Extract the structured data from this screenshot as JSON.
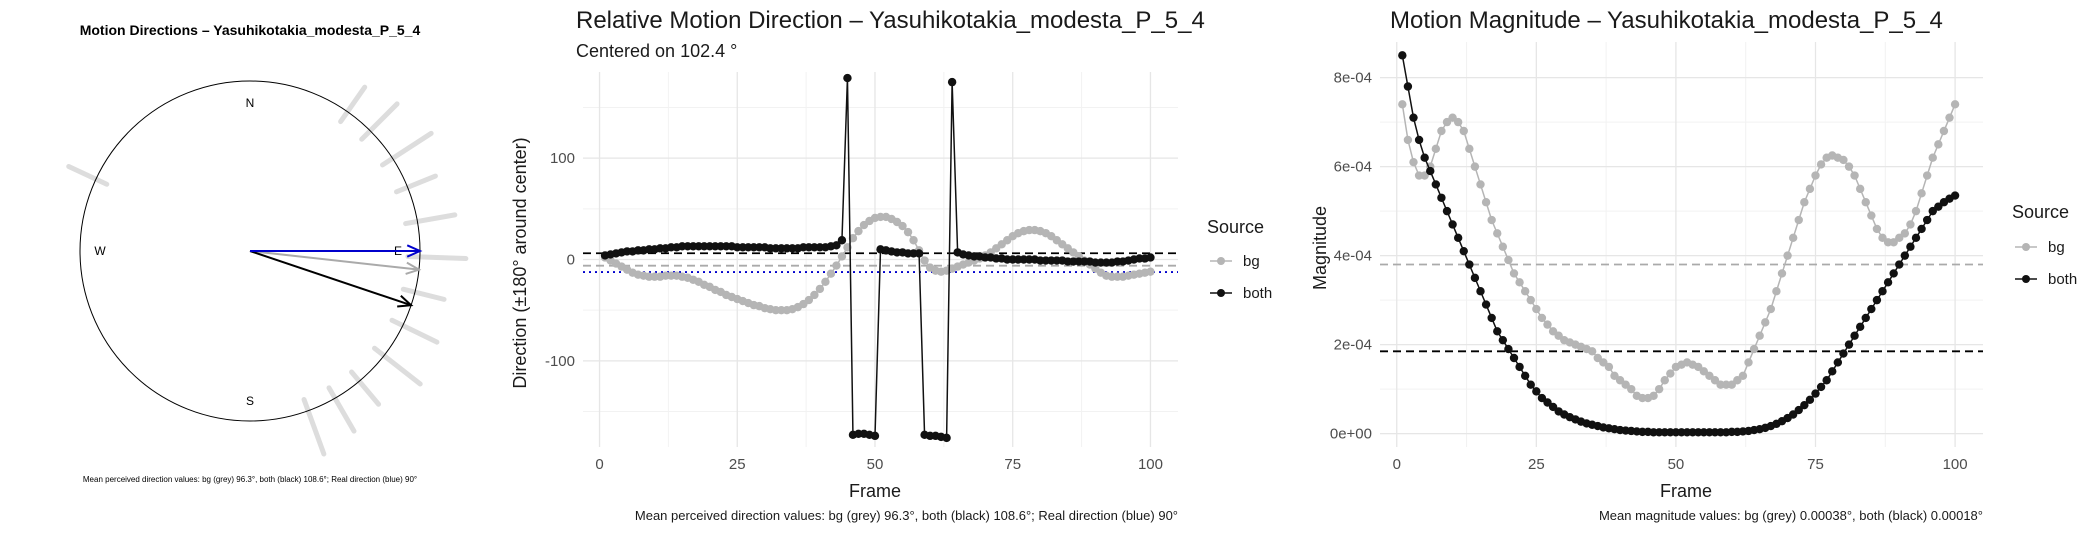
{
  "chart_data": [
    {
      "type": "polar-arrows",
      "title": "Motion Directions – Yasuhikotakia_modesta_P_5_4",
      "compass": [
        "N",
        "E",
        "S",
        "W"
      ],
      "caption": "Mean perceived direction values: bg (grey) 96.3°, both (black) 108.6°; Real direction (blue) 90°",
      "arrows": [
        {
          "name": "bg",
          "angle_deg": 96.3,
          "color": "#aaaaaa"
        },
        {
          "name": "both",
          "angle_deg": 108.6,
          "color": "#000000"
        },
        {
          "name": "real",
          "angle_deg": 90,
          "color": "#0000cc"
        }
      ],
      "spokes_deg": [
        35,
        45,
        57,
        68,
        80,
        92,
        104,
        116,
        128,
        140,
        150,
        160,
        295
      ]
    },
    {
      "type": "line",
      "title": "Relative Motion Direction – Yasuhikotakia_modesta_P_5_4",
      "subtitle": "Centered on  102.4 °",
      "xlabel": "Frame",
      "ylabel": "Direction (±180° around center)",
      "xlim": [
        -3,
        105
      ],
      "ylim": [
        -185,
        185
      ],
      "xticks": [
        0,
        25,
        50,
        75,
        100
      ],
      "yticks": [
        -100,
        0,
        100
      ],
      "legend_title": "Source",
      "caption": "Mean perceived direction values: bg (grey) 96.3°, both (black) 108.6°; Real direction (blue) 90°",
      "hlines": [
        {
          "y": 6.2,
          "color": "#000000",
          "dash": "dashed"
        },
        {
          "y": -6.1,
          "color": "#aaaaaa",
          "dash": "dashed"
        },
        {
          "y": -12.4,
          "color": "#0000cc",
          "dash": "dotted"
        }
      ],
      "series": [
        {
          "name": "bg",
          "color": "#b5b5b5",
          "x": [
            1,
            2,
            3,
            4,
            5,
            6,
            7,
            8,
            9,
            10,
            11,
            12,
            13,
            14,
            15,
            16,
            17,
            18,
            19,
            20,
            21,
            22,
            23,
            24,
            25,
            26,
            27,
            28,
            29,
            30,
            31,
            32,
            33,
            34,
            35,
            36,
            37,
            38,
            39,
            40,
            41,
            42,
            43,
            44,
            45,
            46,
            47,
            48,
            49,
            50,
            51,
            52,
            53,
            54,
            55,
            56,
            57,
            58,
            59,
            60,
            61,
            62,
            63,
            64,
            65,
            66,
            67,
            68,
            69,
            70,
            71,
            72,
            73,
            74,
            75,
            76,
            77,
            78,
            79,
            80,
            81,
            82,
            83,
            84,
            85,
            86,
            87,
            88,
            89,
            90,
            91,
            92,
            93,
            94,
            95,
            96,
            97,
            98,
            99,
            100
          ],
          "y": [
            2,
            -1,
            -4,
            -7,
            -10,
            -13,
            -15,
            -16,
            -17,
            -17,
            -17,
            -16,
            -16,
            -16,
            -17,
            -18,
            -20,
            -22,
            -25,
            -27,
            -30,
            -32,
            -35,
            -37,
            -39,
            -41,
            -43,
            -45,
            -46,
            -48,
            -49,
            -50,
            -50,
            -50,
            -49,
            -47,
            -44,
            -40,
            -35,
            -29,
            -22,
            -14,
            -6,
            3,
            12,
            21,
            28,
            34,
            38,
            41,
            42,
            42,
            40,
            37,
            33,
            27,
            19,
            9,
            -1,
            -8,
            -11,
            -12,
            -11,
            -9,
            -7,
            -5,
            -3,
            -1,
            1,
            4,
            7,
            11,
            15,
            19,
            23,
            26,
            28,
            29,
            29,
            28,
            26,
            23,
            19,
            15,
            11,
            7,
            3,
            -1,
            -5,
            -9,
            -13,
            -16,
            -17,
            -17,
            -17,
            -16,
            -15,
            -14,
            -13,
            -12
          ]
        },
        {
          "name": "both",
          "color": "#111111",
          "x": [
            1,
            2,
            3,
            4,
            5,
            6,
            7,
            8,
            9,
            10,
            11,
            12,
            13,
            14,
            15,
            16,
            17,
            18,
            19,
            20,
            21,
            22,
            23,
            24,
            25,
            26,
            27,
            28,
            29,
            30,
            31,
            32,
            33,
            34,
            35,
            36,
            37,
            38,
            39,
            40,
            41,
            42,
            43,
            44,
            45,
            46,
            47,
            48,
            49,
            50,
            51,
            52,
            53,
            54,
            55,
            56,
            57,
            58,
            59,
            60,
            61,
            62,
            63,
            64,
            65,
            66,
            67,
            68,
            69,
            70,
            71,
            72,
            73,
            74,
            75,
            76,
            77,
            78,
            79,
            80,
            81,
            82,
            83,
            84,
            85,
            86,
            87,
            88,
            89,
            90,
            91,
            92,
            93,
            94,
            95,
            96,
            97,
            98,
            99,
            100
          ],
          "y": [
            4,
            5,
            6,
            7,
            8,
            8,
            9,
            9,
            10,
            10,
            11,
            11,
            12,
            12,
            13,
            13,
            13,
            13,
            13,
            13,
            13,
            13,
            13,
            13,
            12,
            12,
            12,
            12,
            12,
            12,
            11,
            11,
            11,
            11,
            11,
            11,
            12,
            12,
            12,
            12,
            12,
            13,
            14,
            19,
            179,
            -173,
            -172,
            -172,
            -173,
            -174,
            10,
            9,
            8,
            7,
            7,
            6,
            6,
            6,
            -173,
            -174,
            -174,
            -175,
            -176,
            175,
            7,
            5,
            4,
            3,
            3,
            2,
            2,
            1,
            1,
            0,
            0,
            0,
            0,
            0,
            0,
            -1,
            -1,
            -1,
            -1,
            -1,
            -2,
            -2,
            -2,
            -2,
            -2,
            -3,
            -3,
            -3,
            -3,
            -2,
            -2,
            -1,
            0,
            1,
            1,
            2
          ]
        }
      ]
    },
    {
      "type": "line",
      "title": "Motion Magnitude – Yasuhikotakia_modesta_P_5_4",
      "xlabel": "Frame",
      "ylabel": "Magnitude",
      "xlim": [
        -3,
        105
      ],
      "ylim": [
        -3e-05,
        0.00088
      ],
      "xticks": [
        0,
        25,
        50,
        75,
        100
      ],
      "yticks": [
        0,
        0.0002,
        0.0004,
        0.0006,
        0.0008
      ],
      "ytick_labels": [
        "0e+00",
        "2e-04",
        "4e-04",
        "6e-04",
        "8e-04"
      ],
      "legend_title": "Source",
      "caption": "Mean magnitude values: bg (grey) 0.00038°, both (black) 0.00018°",
      "hlines": [
        {
          "y": 0.00038,
          "color": "#aaaaaa",
          "dash": "dashed"
        },
        {
          "y": 0.000185,
          "color": "#000000",
          "dash": "dashed"
        }
      ],
      "series": [
        {
          "name": "bg",
          "color": "#b5b5b5",
          "x": [
            1,
            2,
            3,
            4,
            5,
            6,
            7,
            8,
            9,
            10,
            11,
            12,
            13,
            14,
            15,
            16,
            17,
            18,
            19,
            20,
            21,
            22,
            23,
            24,
            25,
            26,
            27,
            28,
            29,
            30,
            31,
            32,
            33,
            34,
            35,
            36,
            37,
            38,
            39,
            40,
            41,
            42,
            43,
            44,
            45,
            46,
            47,
            48,
            49,
            50,
            51,
            52,
            53,
            54,
            55,
            56,
            57,
            58,
            59,
            60,
            61,
            62,
            63,
            64,
            65,
            66,
            67,
            68,
            69,
            70,
            71,
            72,
            73,
            74,
            75,
            76,
            77,
            78,
            79,
            80,
            81,
            82,
            83,
            84,
            85,
            86,
            87,
            88,
            89,
            90,
            91,
            92,
            93,
            94,
            95,
            96,
            97,
            98,
            99,
            100
          ],
          "y": [
            0.00074,
            0.00066,
            0.00061,
            0.00058,
            0.00058,
            0.0006,
            0.00064,
            0.00068,
            0.0007,
            0.00071,
            0.0007,
            0.00068,
            0.00064,
            0.0006,
            0.00056,
            0.00052,
            0.00048,
            0.00045,
            0.00042,
            0.00039,
            0.00036,
            0.00034,
            0.00032,
            0.0003,
            0.00028,
            0.00026,
            0.000245,
            0.00023,
            0.00022,
            0.00021,
            0.000205,
            0.0002,
            0.000195,
            0.00019,
            0.000185,
            0.00017,
            0.00016,
            0.00015,
            0.00013,
            0.00012,
            0.00011,
            0.0001,
            8.5e-05,
            8e-05,
            8e-05,
            8.5e-05,
            0.0001,
            0.00012,
            0.000135,
            0.00015,
            0.000155,
            0.00016,
            0.000155,
            0.00015,
            0.00014,
            0.00013,
            0.00012,
            0.00011,
            0.00011,
            0.00011,
            0.00012,
            0.00013,
            0.00016,
            0.00019,
            0.00022,
            0.00025,
            0.00028,
            0.00032,
            0.00036,
            0.0004,
            0.00044,
            0.00048,
            0.00052,
            0.00055,
            0.00058,
            0.000605,
            0.00062,
            0.000625,
            0.00062,
            0.000615,
            0.0006,
            0.00058,
            0.00055,
            0.00052,
            0.00049,
            0.00046,
            0.00044,
            0.00043,
            0.00043,
            0.00044,
            0.00045,
            0.00047,
            0.0005,
            0.00054,
            0.00058,
            0.00062,
            0.00065,
            0.00068,
            0.00071,
            0.00074
          ]
        },
        {
          "name": "both",
          "color": "#111111",
          "x": [
            1,
            2,
            3,
            4,
            5,
            6,
            7,
            8,
            9,
            10,
            11,
            12,
            13,
            14,
            15,
            16,
            17,
            18,
            19,
            20,
            21,
            22,
            23,
            24,
            25,
            26,
            27,
            28,
            29,
            30,
            31,
            32,
            33,
            34,
            35,
            36,
            37,
            38,
            39,
            40,
            41,
            42,
            43,
            44,
            45,
            46,
            47,
            48,
            49,
            50,
            51,
            52,
            53,
            54,
            55,
            56,
            57,
            58,
            59,
            60,
            61,
            62,
            63,
            64,
            65,
            66,
            67,
            68,
            69,
            70,
            71,
            72,
            73,
            74,
            75,
            76,
            77,
            78,
            79,
            80,
            81,
            82,
            83,
            84,
            85,
            86,
            87,
            88,
            89,
            90,
            91,
            92,
            93,
            94,
            95,
            96,
            97,
            98,
            99,
            100
          ],
          "y": [
            0.00085,
            0.00078,
            0.00071,
            0.00066,
            0.00062,
            0.00059,
            0.00056,
            0.00053,
            0.0005,
            0.00047,
            0.00044,
            0.00041,
            0.00038,
            0.00035,
            0.00032,
            0.00029,
            0.00026,
            0.00023,
            0.00021,
            0.00019,
            0.00017,
            0.00015,
            0.00013,
            0.00011,
            9.5e-05,
            8e-05,
            7e-05,
            6e-05,
            5e-05,
            4.3e-05,
            3.7e-05,
            3.2e-05,
            2.7e-05,
            2.3e-05,
            2e-05,
            1.7e-05,
            1.4e-05,
            1.2e-05,
            1e-05,
            8e-06,
            7e-06,
            6e-06,
            5e-06,
            4e-06,
            4e-06,
            3e-06,
            3e-06,
            3e-06,
            3e-06,
            3e-06,
            3e-06,
            3e-06,
            3e-06,
            3e-06,
            3e-06,
            3e-06,
            3e-06,
            3e-06,
            3e-06,
            4e-06,
            4e-06,
            5e-06,
            6e-06,
            8e-06,
            1e-05,
            1.3e-05,
            1.7e-05,
            2.2e-05,
            2.8e-05,
            3.5e-05,
            4.3e-05,
            5.3e-05,
            6.4e-05,
            7.6e-05,
            9e-05,
            0.000105,
            0.00012,
            0.00014,
            0.00016,
            0.00018,
            0.0002,
            0.00022,
            0.00024,
            0.00026,
            0.00028,
            0.0003,
            0.00032,
            0.00034,
            0.00036,
            0.00038,
            0.0004,
            0.00042,
            0.00044,
            0.00046,
            0.00048,
            0.0005,
            0.00051,
            0.00052,
            0.000528,
            0.000535
          ]
        }
      ]
    }
  ]
}
